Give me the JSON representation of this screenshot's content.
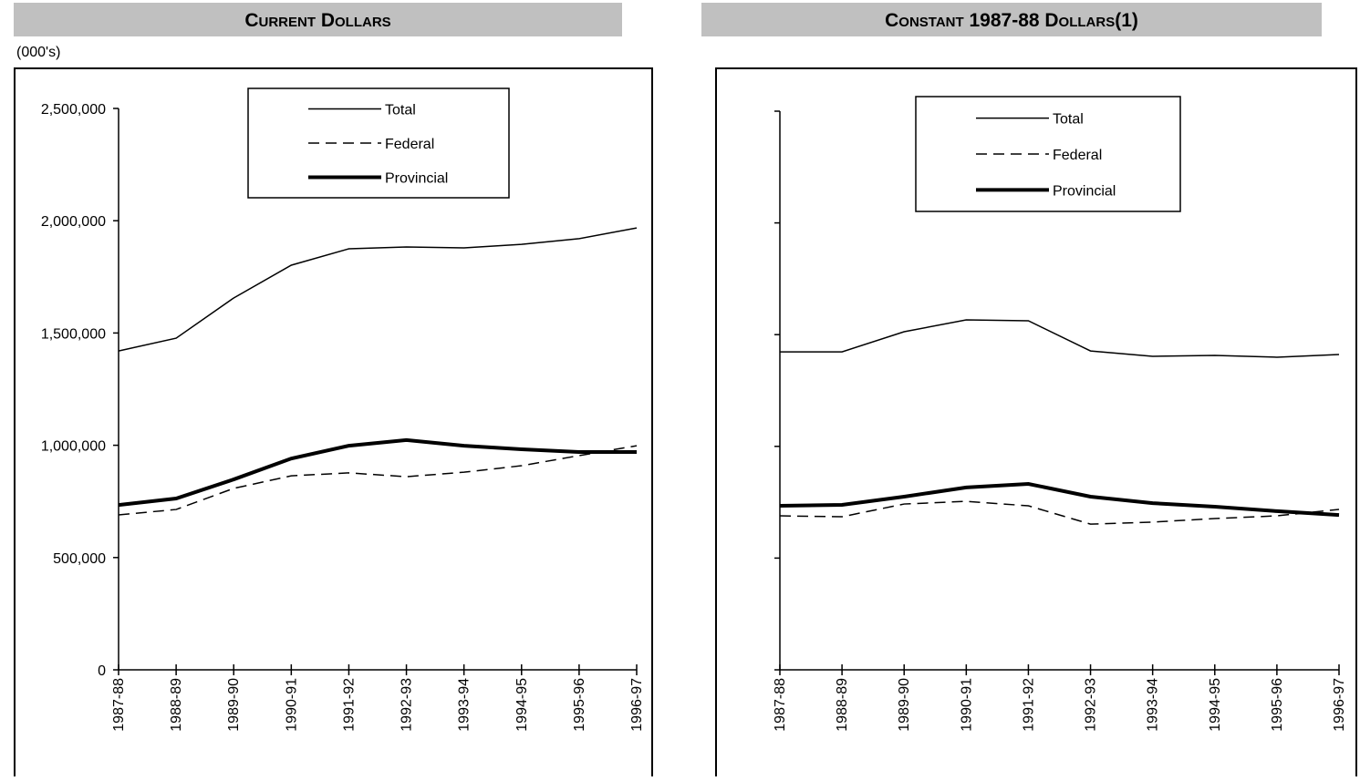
{
  "chart_data": [
    {
      "type": "line",
      "title": "Current Dollars",
      "y_label": "(000's)",
      "categories": [
        "1987-88",
        "1988-89",
        "1989-90",
        "1990-91",
        "1991-92",
        "1992-93",
        "1993-94",
        "1994-95",
        "1995-96",
        "1996-97"
      ],
      "series": [
        {
          "name": "Total",
          "color": "#000000",
          "line_style": "solid",
          "line_width": 1.5,
          "values": [
            1420000,
            1477000,
            1656000,
            1802000,
            1875000,
            1883000,
            1879000,
            1895000,
            1920000,
            1968000
          ]
        },
        {
          "name": "Federal",
          "color": "#000000",
          "line_style": "dashed",
          "line_width": 1.5,
          "values": [
            690000,
            714000,
            808000,
            864000,
            877000,
            860000,
            880000,
            909000,
            954000,
            998000
          ]
        },
        {
          "name": "Provincial",
          "color": "#000000",
          "line_style": "solid",
          "line_width": 4,
          "values": [
            734000,
            763000,
            848000,
            941000,
            998000,
            1023000,
            998000,
            982000,
            970000,
            970000
          ]
        }
      ],
      "ylim": [
        0,
        2500000
      ],
      "yticks": [
        0,
        {
          "value": 500000,
          "label": "500,000"
        },
        {
          "value": 1000000,
          "label": "1,000,000"
        },
        {
          "value": 1500000,
          "label": "1,500,000"
        },
        {
          "value": 2000000,
          "label": "2,000,000"
        },
        {
          "value": 2500000,
          "label": "2,500,000"
        }
      ],
      "ytick_labels": true
    },
    {
      "type": "line",
      "title": "Constant 1987-88 Dollars(1)",
      "categories": [
        "1987-88",
        "1988-89",
        "1989-90",
        "1990-91",
        "1991-92",
        "1992-93",
        "1993-94",
        "1994-95",
        "1995-96",
        "1996-97"
      ],
      "series": [
        {
          "name": "Total",
          "color": "#000000",
          "line_style": "solid",
          "line_width": 1.5,
          "values": [
            1423000,
            1423000,
            1513000,
            1566000,
            1562000,
            1427000,
            1403000,
            1407000,
            1399000,
            1411000
          ]
        },
        {
          "name": "Federal",
          "color": "#000000",
          "line_style": "dashed",
          "line_width": 1.5,
          "values": [
            689000,
            685000,
            742000,
            754000,
            734000,
            652000,
            661000,
            677000,
            689000,
            718000
          ]
        },
        {
          "name": "Provincial",
          "color": "#000000",
          "line_style": "solid",
          "line_width": 4,
          "values": [
            734000,
            738000,
            775000,
            816000,
            832000,
            775000,
            746000,
            730000,
            710000,
            693000
          ]
        }
      ],
      "ylim": [
        0,
        2500000
      ],
      "yticks": [
        0,
        500000,
        1000000,
        1500000,
        2000000,
        2500000
      ],
      "ytick_labels": false
    }
  ]
}
